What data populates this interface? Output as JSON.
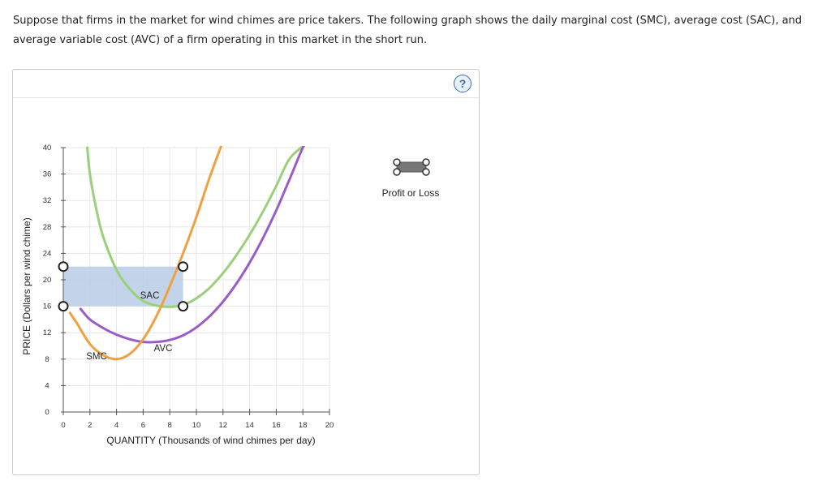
{
  "intro": {
    "line1": "Suppose that firms in the market for wind chimes are price takers. The following graph shows the daily marginal cost (SMC), average cost (SAC), and",
    "line2": "average variable cost (AVC) of a firm operating in this market in the short run."
  },
  "help_button": {
    "label": "?"
  },
  "tool": {
    "label": "Profit or Loss",
    "icon": "profit-loss-rectangle-tool"
  },
  "colors": {
    "smc": "#f0a040",
    "sac": "#9bd07a",
    "avc": "#9a5cc8",
    "rect_fill": "#b9cde6",
    "grid": "#e6e6e6"
  },
  "chart_data": {
    "type": "line",
    "xlabel": "QUANTITY (Thousands of wind chimes per day)",
    "ylabel": "PRICE (Dollars per wind chime)",
    "xlim": [
      0,
      20
    ],
    "ylim": [
      0,
      40
    ],
    "x_ticks": [
      "0",
      "2",
      "4",
      "6",
      "8",
      "10",
      "12",
      "14",
      "16",
      "18",
      "20"
    ],
    "y_ticks": [
      "0",
      "4",
      "8",
      "12",
      "16",
      "20",
      "24",
      "28",
      "32",
      "36",
      "40"
    ],
    "grid": true,
    "series": [
      {
        "name": "SMC",
        "label_at": [
          2.5,
          8
        ],
        "points": [
          [
            0.5,
            15
          ],
          [
            1,
            13.5
          ],
          [
            2,
            10.3
          ],
          [
            3,
            8.6
          ],
          [
            4,
            8
          ],
          [
            5,
            8.8
          ],
          [
            6,
            11
          ],
          [
            7,
            14.5
          ],
          [
            8,
            19
          ],
          [
            9,
            24
          ],
          [
            10,
            29.5
          ],
          [
            11,
            35.5
          ],
          [
            12,
            41
          ]
        ]
      },
      {
        "name": "SAC",
        "label_at": [
          6.5,
          17.2
        ],
        "points": [
          [
            1.8,
            40
          ],
          [
            2,
            36
          ],
          [
            2.5,
            30.5
          ],
          [
            3,
            26.5
          ],
          [
            4,
            21.5
          ],
          [
            5,
            18.6
          ],
          [
            6,
            16.8
          ],
          [
            7,
            16.1
          ],
          [
            8,
            15.9
          ],
          [
            9,
            16.2
          ],
          [
            10,
            17.2
          ],
          [
            11,
            18.8
          ],
          [
            12,
            21
          ],
          [
            13,
            23.7
          ],
          [
            14,
            26.8
          ],
          [
            15,
            30.3
          ],
          [
            16,
            34.2
          ],
          [
            17,
            38.3
          ],
          [
            18.2,
            40.5
          ]
        ]
      },
      {
        "name": "AVC",
        "label_at": [
          7.5,
          9.2
        ],
        "points": [
          [
            1.3,
            15.6
          ],
          [
            2,
            14
          ],
          [
            3,
            12.7
          ],
          [
            4,
            11.7
          ],
          [
            5,
            11
          ],
          [
            6,
            10.6
          ],
          [
            7,
            10.6
          ],
          [
            8,
            10.9
          ],
          [
            9,
            11.6
          ],
          [
            10,
            12.8
          ],
          [
            11,
            14.5
          ],
          [
            12,
            16.7
          ],
          [
            13,
            19.4
          ],
          [
            14,
            22.6
          ],
          [
            15,
            26.3
          ],
          [
            16,
            30.5
          ],
          [
            17,
            35.2
          ],
          [
            18,
            40
          ],
          [
            18.4,
            41
          ]
        ]
      }
    ],
    "profit_rectangle": {
      "x": [
        0,
        9
      ],
      "y": [
        16,
        22
      ]
    },
    "handles": [
      [
        0,
        22
      ],
      [
        0,
        16
      ],
      [
        9,
        22
      ],
      [
        9,
        16
      ]
    ]
  }
}
